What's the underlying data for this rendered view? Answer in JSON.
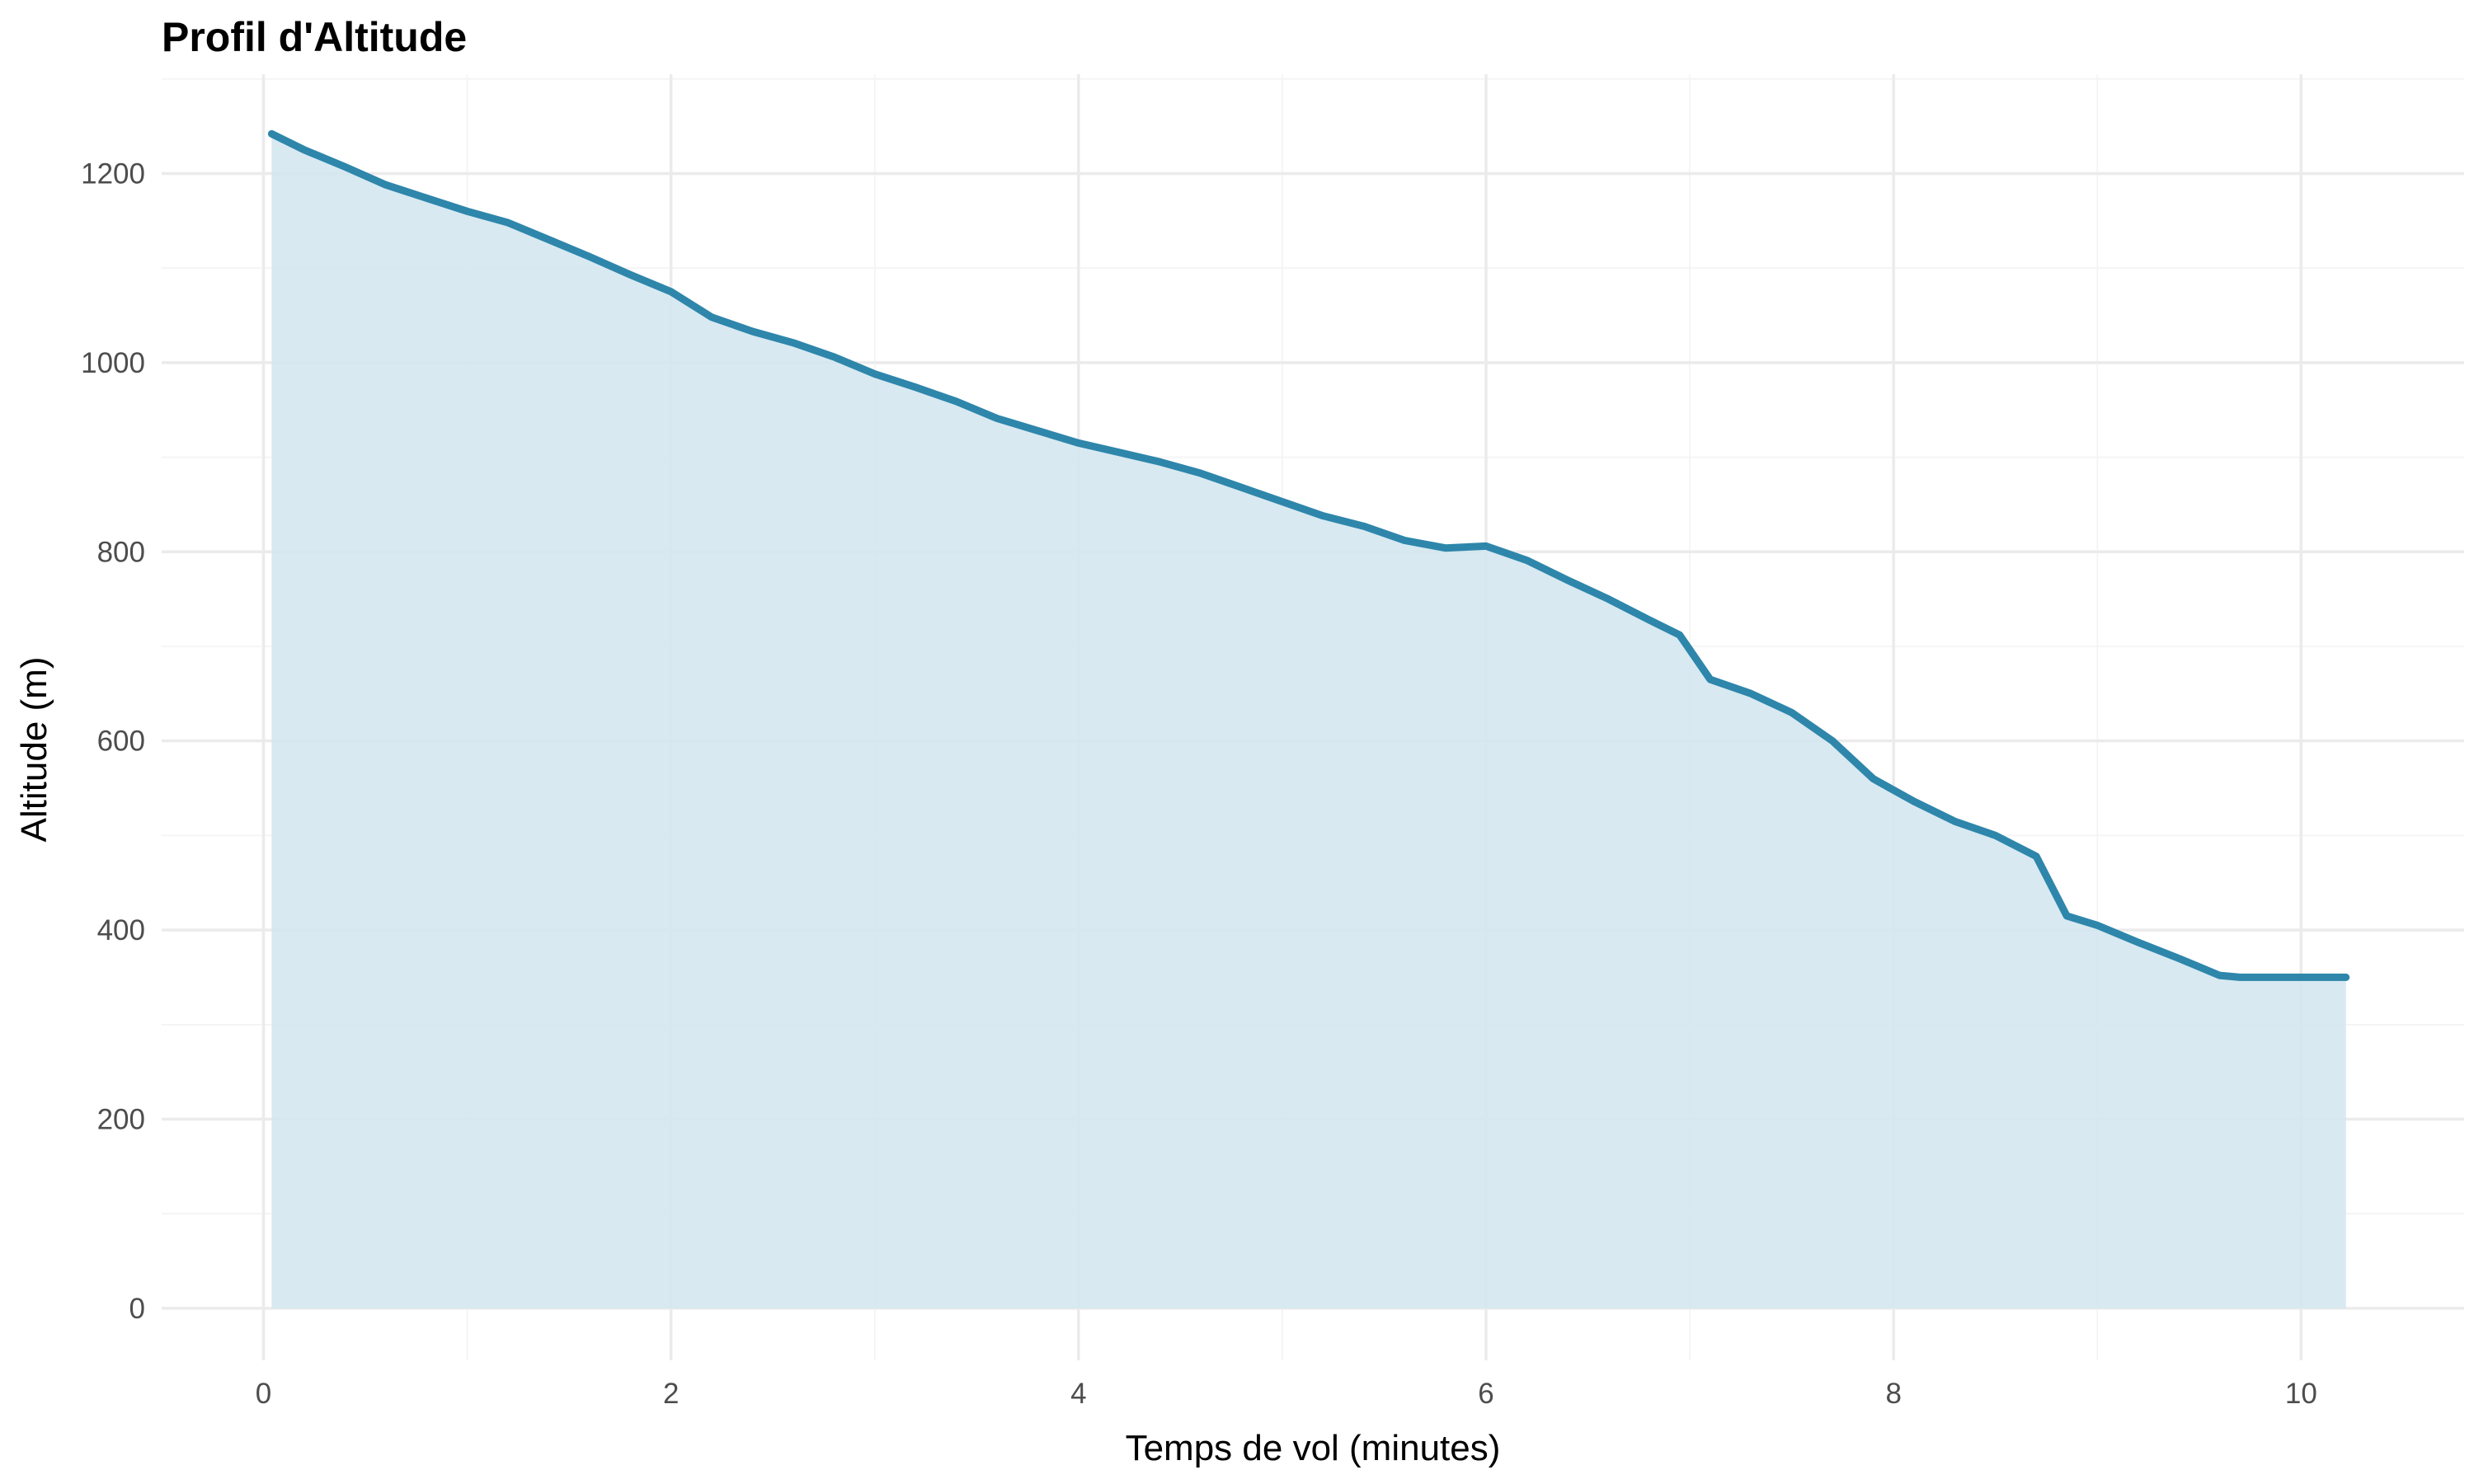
{
  "chart_data": {
    "type": "area",
    "title": "Profil d'Altitude",
    "xlabel": "Temps de vol (minutes)",
    "ylabel": "Altitude (m)",
    "xlim": [
      -0.5,
      10.8
    ],
    "ylim": [
      -55,
      1305
    ],
    "x_ticks": [
      0,
      2,
      4,
      6,
      8,
      10
    ],
    "x_tick_labels": [
      "0",
      "2",
      "4",
      "6",
      "8",
      "10"
    ],
    "y_ticks": [
      0,
      200,
      400,
      600,
      800,
      1000,
      1200
    ],
    "y_tick_labels": [
      "0",
      "200",
      "400",
      "600",
      "800",
      "1000",
      "1200"
    ],
    "grid": true,
    "line_color": "#2e86ab",
    "fill_color": "#d4e7ef",
    "series": [
      {
        "x": [
          0.04,
          0.2,
          0.4,
          0.6,
          0.8,
          1.0,
          1.2,
          1.4,
          1.6,
          1.8,
          2.0,
          2.2,
          2.4,
          2.6,
          2.8,
          3.0,
          3.2,
          3.4,
          3.6,
          3.8,
          4.0,
          4.2,
          4.4,
          4.6,
          4.8,
          5.0,
          5.2,
          5.4,
          5.6,
          5.8,
          6.0,
          6.2,
          6.4,
          6.6,
          6.8,
          6.95,
          7.1,
          7.3,
          7.5,
          7.7,
          7.9,
          8.1,
          8.3,
          8.5,
          8.7,
          8.85,
          9.0,
          9.2,
          9.4,
          9.6,
          9.7,
          10.0,
          10.22
        ],
        "y": [
          1242,
          1225,
          1207,
          1188,
          1174,
          1160,
          1148,
          1130,
          1112,
          1093,
          1075,
          1048,
          1033,
          1021,
          1006,
          988,
          974,
          959,
          941,
          928,
          915,
          905,
          895,
          883,
          868,
          853,
          838,
          827,
          812,
          804,
          806,
          791,
          770,
          750,
          728,
          712,
          665,
          650,
          630,
          600,
          560,
          536,
          515,
          500,
          478,
          415,
          405,
          387,
          370,
          352,
          350,
          350,
          350
        ]
      }
    ]
  }
}
